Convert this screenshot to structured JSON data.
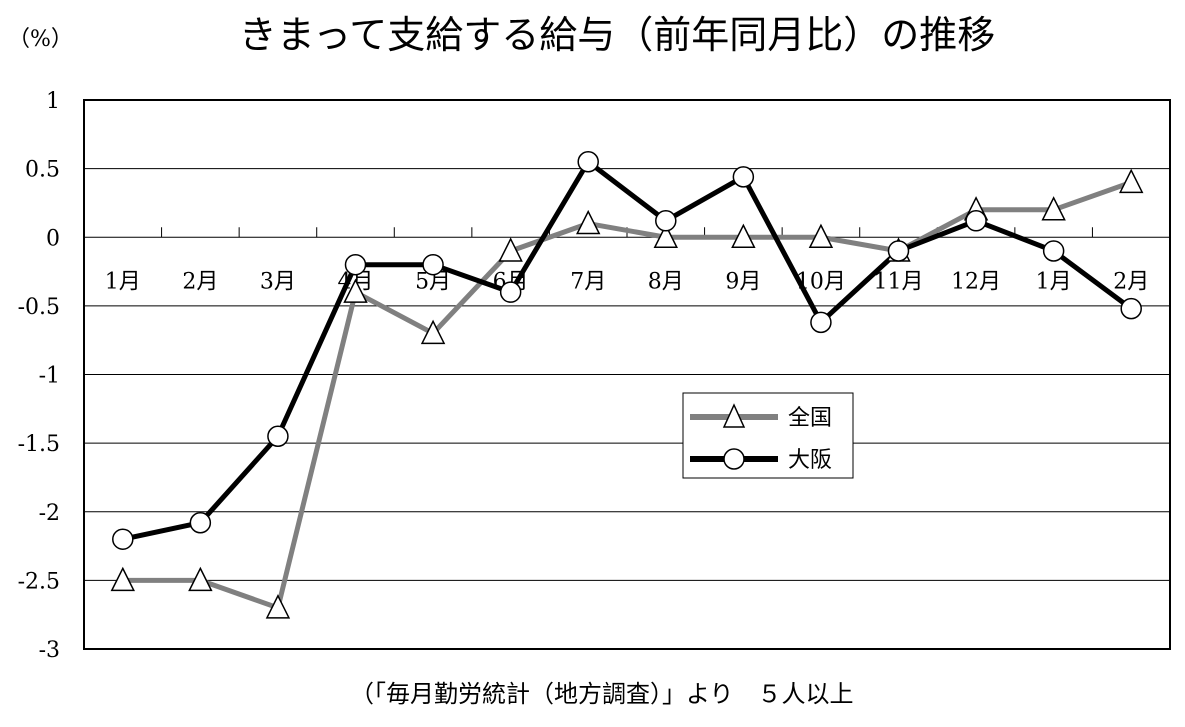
{
  "chart_data": {
    "type": "line",
    "title": "きまって支給する給与（前年同月比）の推移",
    "unit_label": "（%）",
    "source": "（「毎月勤労統計（地方調査）」より　５人以上",
    "categories": [
      "1月",
      "2月",
      "3月",
      "4月",
      "5月",
      "6月",
      "7月",
      "8月",
      "9月",
      "10月",
      "11月",
      "12月",
      "1月",
      "2月"
    ],
    "ylim": [
      -3,
      1
    ],
    "yticks": [
      1,
      0.5,
      0,
      -0.5,
      -1,
      -1.5,
      -2,
      -2.5,
      -3
    ],
    "ytick_labels": [
      "1",
      "0.5",
      "0",
      "-0.5",
      "-1",
      "-1.5",
      "-2",
      "-2.5",
      "-3"
    ],
    "grid": true,
    "legend_position": "center-right",
    "series": [
      {
        "name": "全国",
        "marker": "triangle",
        "color": "#808080",
        "values": [
          -2.5,
          -2.5,
          -2.7,
          -0.4,
          -0.7,
          -0.1,
          0.1,
          0.0,
          0.0,
          0.0,
          -0.1,
          0.2,
          0.2,
          0.4
        ]
      },
      {
        "name": "大阪",
        "marker": "circle",
        "color": "#000000",
        "values": [
          -2.2,
          -2.08,
          -1.45,
          -0.2,
          -0.2,
          -0.4,
          0.55,
          0.12,
          0.44,
          -0.62,
          -0.1,
          0.12,
          -0.1,
          -0.52
        ]
      }
    ]
  }
}
